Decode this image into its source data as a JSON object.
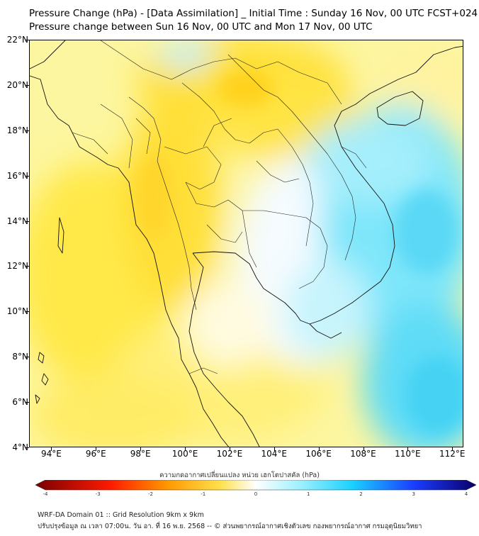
{
  "header": {
    "title_line1": "Pressure Change (hPa) - [Data Assimilation] _ Initial Time : Sunday 16 Nov, 00 UTC FCST+024",
    "title_line2": "Pressure change between Sun 16 Nov, 00 UTC and Mon 17 Nov, 00 UTC"
  },
  "map": {
    "lat_range": [
      4,
      22
    ],
    "lon_range": [
      93,
      112.5
    ],
    "lat_labels": [
      {
        "value": 22,
        "text": "22°N"
      },
      {
        "value": 20,
        "text": "20°N"
      },
      {
        "value": 18,
        "text": "18°N"
      },
      {
        "value": 16,
        "text": "16°N"
      },
      {
        "value": 14,
        "text": "14°N"
      },
      {
        "value": 12,
        "text": "12°N"
      },
      {
        "value": 10,
        "text": "10°N"
      },
      {
        "value": 8,
        "text": "8°N"
      },
      {
        "value": 6,
        "text": "6°N"
      },
      {
        "value": 4,
        "text": "4°N"
      }
    ],
    "lon_labels": [
      {
        "value": 94,
        "text": "94°E"
      },
      {
        "value": 96,
        "text": "96°E"
      },
      {
        "value": 98,
        "text": "98°E"
      },
      {
        "value": 100,
        "text": "100°E"
      },
      {
        "value": 102,
        "text": "102°E"
      },
      {
        "value": 104,
        "text": "104°E"
      },
      {
        "value": 106,
        "text": "106°E"
      },
      {
        "value": 108,
        "text": "108°E"
      },
      {
        "value": 110,
        "text": "110°E"
      },
      {
        "value": 112,
        "text": "112°E"
      }
    ]
  },
  "colorbar": {
    "title": "ความกดอากาศเปลี่ยนแปลง หน่วย เฮกโตปาสคัล (hPa)",
    "min": -4,
    "max": 4,
    "tick_labels": [
      {
        "value": -4,
        "text": "-4"
      },
      {
        "value": -3,
        "text": "-3"
      },
      {
        "value": -2,
        "text": "-2"
      },
      {
        "value": -1,
        "text": "-1"
      },
      {
        "value": 0,
        "text": "0"
      },
      {
        "value": 1,
        "text": "1"
      },
      {
        "value": 2,
        "text": "2"
      },
      {
        "value": 3,
        "text": "3"
      },
      {
        "value": 4,
        "text": "4"
      }
    ],
    "colors": {
      "neg_strong": "#7a0000",
      "neg_mid": "#ff1a00",
      "neg_orange": "#ff9900",
      "neg_yellow": "#ffe14d",
      "neutral": "#ffffff",
      "pos_light": "#9ff0ff",
      "pos_cyan": "#1ad0ff",
      "pos_blue": "#1a3cff",
      "pos_strong": "#0a006a"
    }
  },
  "footer": {
    "line1": "WRF-DA Domain 01 :: Grid Resolution 9km x 9km",
    "line2": "ปรับปรุงข้อมูล ณ เวลา 07:00น. วัน อา. ที่ 16 พ.ย. 2568 -- © ส่วนพยากรณ์อากาศเชิงตัวเลข กองพยากรณ์อากาศ กรมอุตุนิยมวิทยา"
  }
}
